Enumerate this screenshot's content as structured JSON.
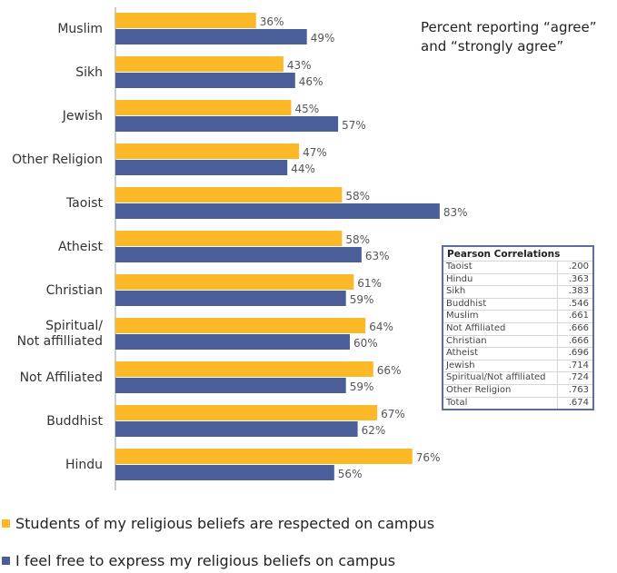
{
  "chart_data": {
    "type": "bar",
    "orientation": "horizontal",
    "categories": [
      "Muslim",
      "Sikh",
      "Jewish",
      "Other Religion",
      "Taoist",
      "Atheist",
      "Christian",
      "Spiritual/Not affilliated",
      "Not Affiliated",
      "Buddhist",
      "Hindu"
    ],
    "series": [
      {
        "name": "Students of my religious beliefs are respected on campus",
        "color": "#FDB827",
        "values": [
          36,
          43,
          45,
          47,
          58,
          58,
          61,
          64,
          66,
          67,
          76
        ],
        "labels": [
          "36%",
          "43%",
          "45%",
          "47%",
          "58%",
          "58%",
          "61%",
          "64%",
          "66%",
          "67%",
          "76%"
        ]
      },
      {
        "name": "I feel free to express my religious beliefs on campus",
        "color": "#4A5F9A",
        "values": [
          49,
          46,
          57,
          44,
          83,
          63,
          59,
          60,
          59,
          62,
          56
        ],
        "labels": [
          "49%",
          "46%",
          "57%",
          "44%",
          "83%",
          "63%",
          "59%",
          "60%",
          "59%",
          "62%",
          "56%"
        ]
      }
    ],
    "xlim": [
      0,
      100
    ],
    "grid": false,
    "legend_position": "bottom",
    "annotation": [
      "Percent reporting “agree”",
      "and “strongly agree”"
    ]
  },
  "pearson": {
    "title": "Pearson Correlations",
    "rows": [
      {
        "name": "Taoist",
        "value": ".200"
      },
      {
        "name": "Hindu",
        "value": ".363"
      },
      {
        "name": "Sikh",
        "value": ".383"
      },
      {
        "name": "Buddhist",
        "value": ".546"
      },
      {
        "name": "Muslim",
        "value": ".661"
      },
      {
        "name": "Not Affiliated",
        "value": ".666"
      },
      {
        "name": "Christian",
        "value": ".666"
      },
      {
        "name": "Atheist",
        "value": ".696"
      },
      {
        "name": "Jewish",
        "value": ".714"
      },
      {
        "name": "Spiritual/Not affiliated",
        "value": ".724"
      },
      {
        "name": "Other Religion",
        "value": ".763"
      },
      {
        "name": "Total",
        "value": ".674"
      }
    ]
  }
}
